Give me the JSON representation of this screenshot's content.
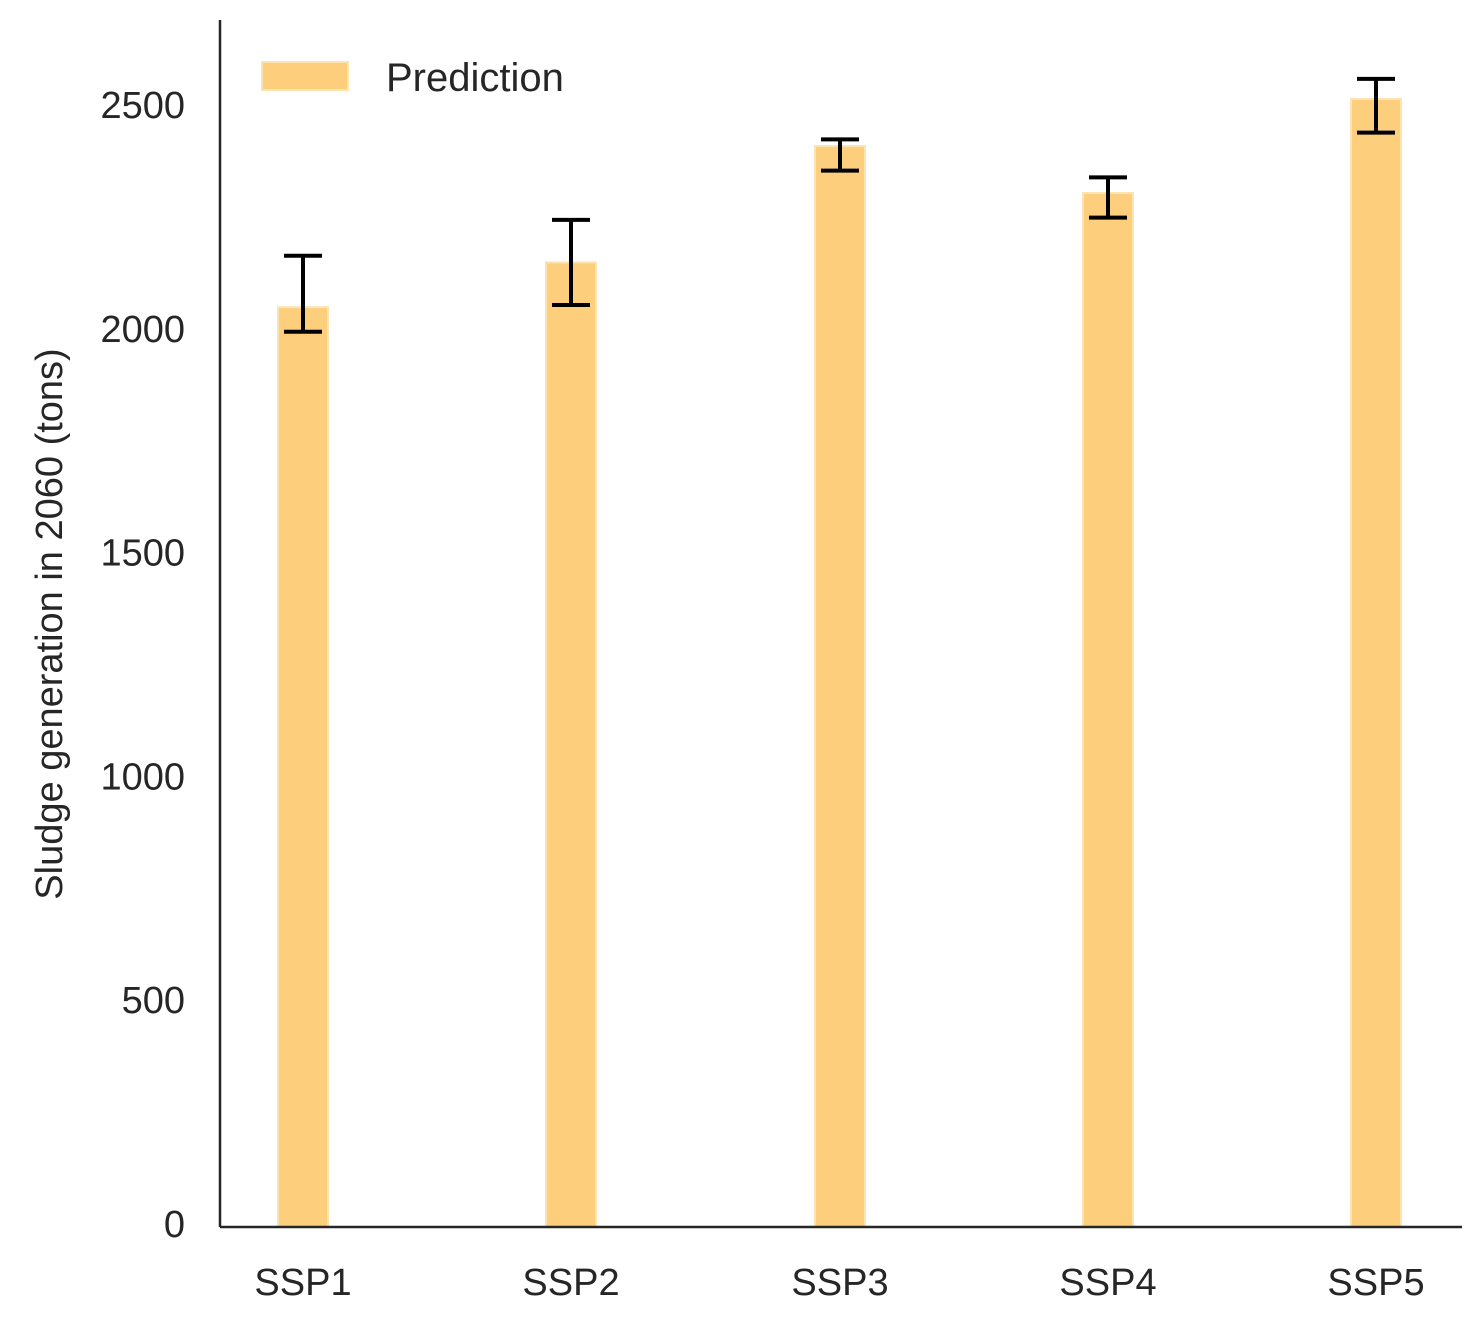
{
  "chart_data": {
    "type": "bar",
    "categories": [
      "SSP1",
      "SSP2",
      "SSP3",
      "SSP4",
      "SSP5"
    ],
    "series": [
      {
        "name": "Prediction",
        "values": [
          2055,
          2155,
          2415,
          2310,
          2520
        ],
        "error_low": [
          2000,
          2060,
          2360,
          2255,
          2445
        ],
        "error_high": [
          2170,
          2250,
          2430,
          2345,
          2565
        ]
      }
    ],
    "xlabel": "",
    "ylabel": "Sludge generation in 2060 (tons)",
    "ylim": [
      0,
      2700
    ],
    "yticks": [
      0,
      500,
      1000,
      1500,
      2000,
      2500
    ],
    "grid": false,
    "legend_position": "top-left",
    "colors": {
      "bar_fill": "#fdce7c",
      "bar_edge": "#fde3b2",
      "error_bar": "#000000",
      "axis": "#262626"
    }
  }
}
